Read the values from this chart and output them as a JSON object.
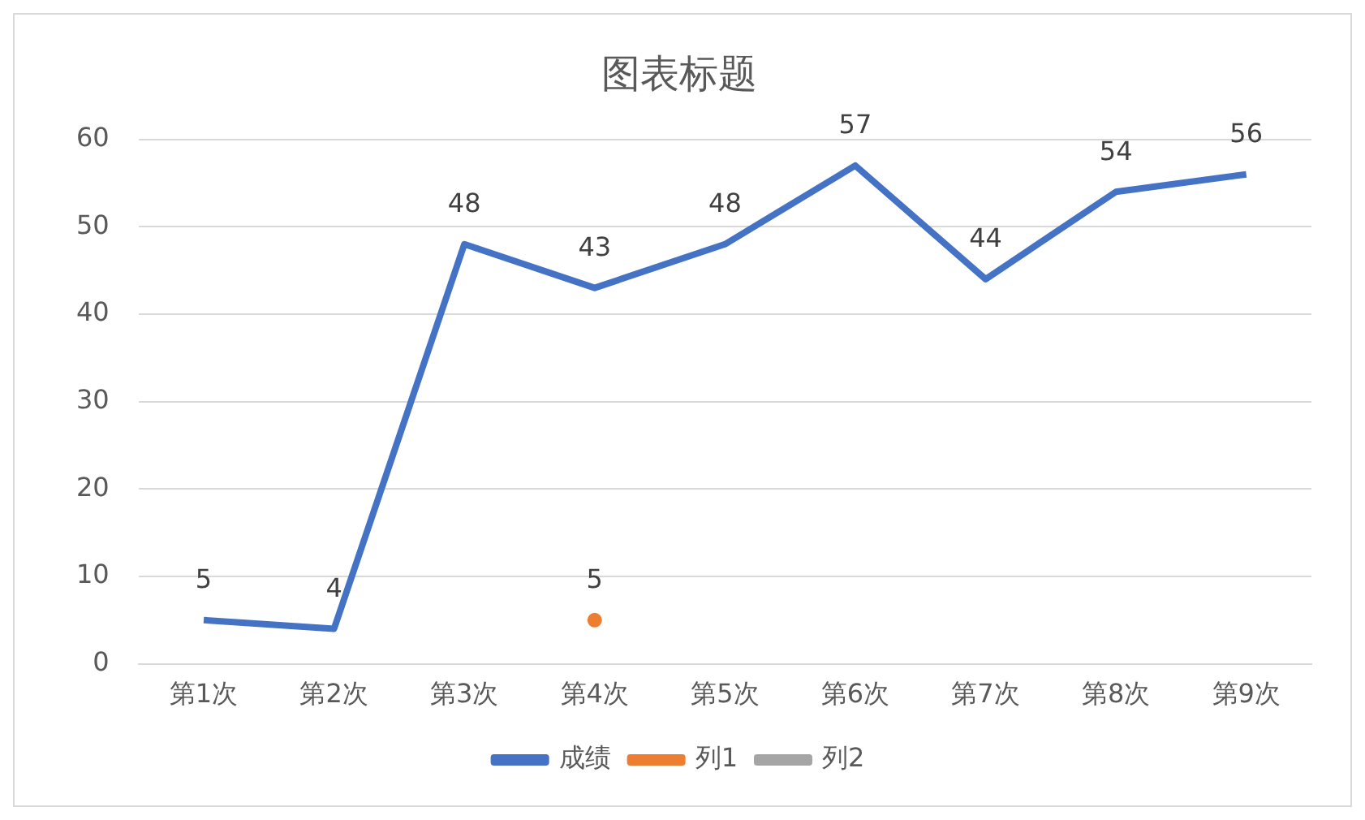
{
  "chart_data": {
    "type": "line",
    "title": "图表标题",
    "categories": [
      "第1次",
      "第2次",
      "第3次",
      "第4次",
      "第5次",
      "第6次",
      "第7次",
      "第8次",
      "第9次"
    ],
    "series": [
      {
        "name": "成绩",
        "color": "#4472c4",
        "values": [
          5,
          4,
          48,
          43,
          48,
          57,
          44,
          54,
          56
        ]
      },
      {
        "name": "列1",
        "color": "#ed7d31",
        "marker": "circle",
        "values": [
          null,
          null,
          null,
          5,
          null,
          null,
          null,
          null,
          null
        ]
      },
      {
        "name": "列2",
        "color": "#a5a5a5",
        "values": [
          null,
          null,
          null,
          null,
          null,
          null,
          null,
          null,
          null
        ]
      }
    ],
    "ylim": [
      0,
      60
    ],
    "yticks": [
      0,
      10,
      20,
      30,
      40,
      50,
      60
    ],
    "grid": "y",
    "legend": "bottom",
    "marker": "none",
    "data_labels": true
  }
}
